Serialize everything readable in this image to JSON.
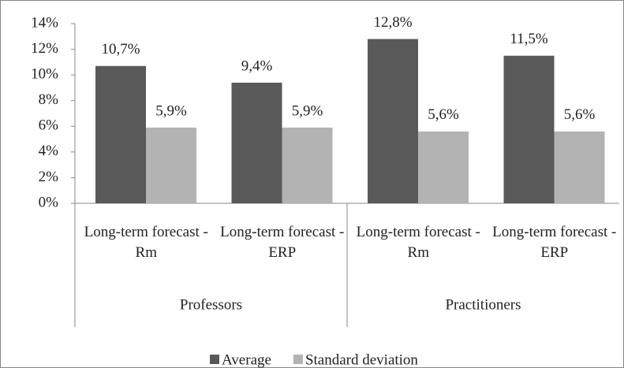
{
  "chart_data": {
    "type": "bar",
    "categories": [
      "Long-term forecast - Rm",
      "Long-term forecast - ERP",
      "Long-term forecast - Rm",
      "Long-term forecast - ERP"
    ],
    "groups": [
      "Professors",
      "Practitioners"
    ],
    "series": [
      {
        "name": "Average",
        "color": "#595959",
        "values": [
          10.7,
          9.4,
          12.8,
          11.5
        ],
        "value_labels": [
          "10,7%",
          "9,4%",
          "12,8%",
          "11,5%"
        ]
      },
      {
        "name": "Standard deviation",
        "color": "#b3b3b3",
        "values": [
          5.9,
          5.9,
          5.6,
          5.6
        ],
        "value_labels": [
          "5,9%",
          "5,9%",
          "5,6%",
          "5,6%"
        ]
      }
    ],
    "ylim": [
      0,
      14
    ],
    "yticks": [
      {
        "value": 0,
        "label": "0%"
      },
      {
        "value": 2,
        "label": "2%"
      },
      {
        "value": 4,
        "label": "4%"
      },
      {
        "value": 6,
        "label": "6%"
      },
      {
        "value": 8,
        "label": "8%"
      },
      {
        "value": 10,
        "label": "10%"
      },
      {
        "value": 12,
        "label": "12%"
      },
      {
        "value": 14,
        "label": "14%"
      }
    ],
    "grid": false,
    "legend": "bottom"
  }
}
